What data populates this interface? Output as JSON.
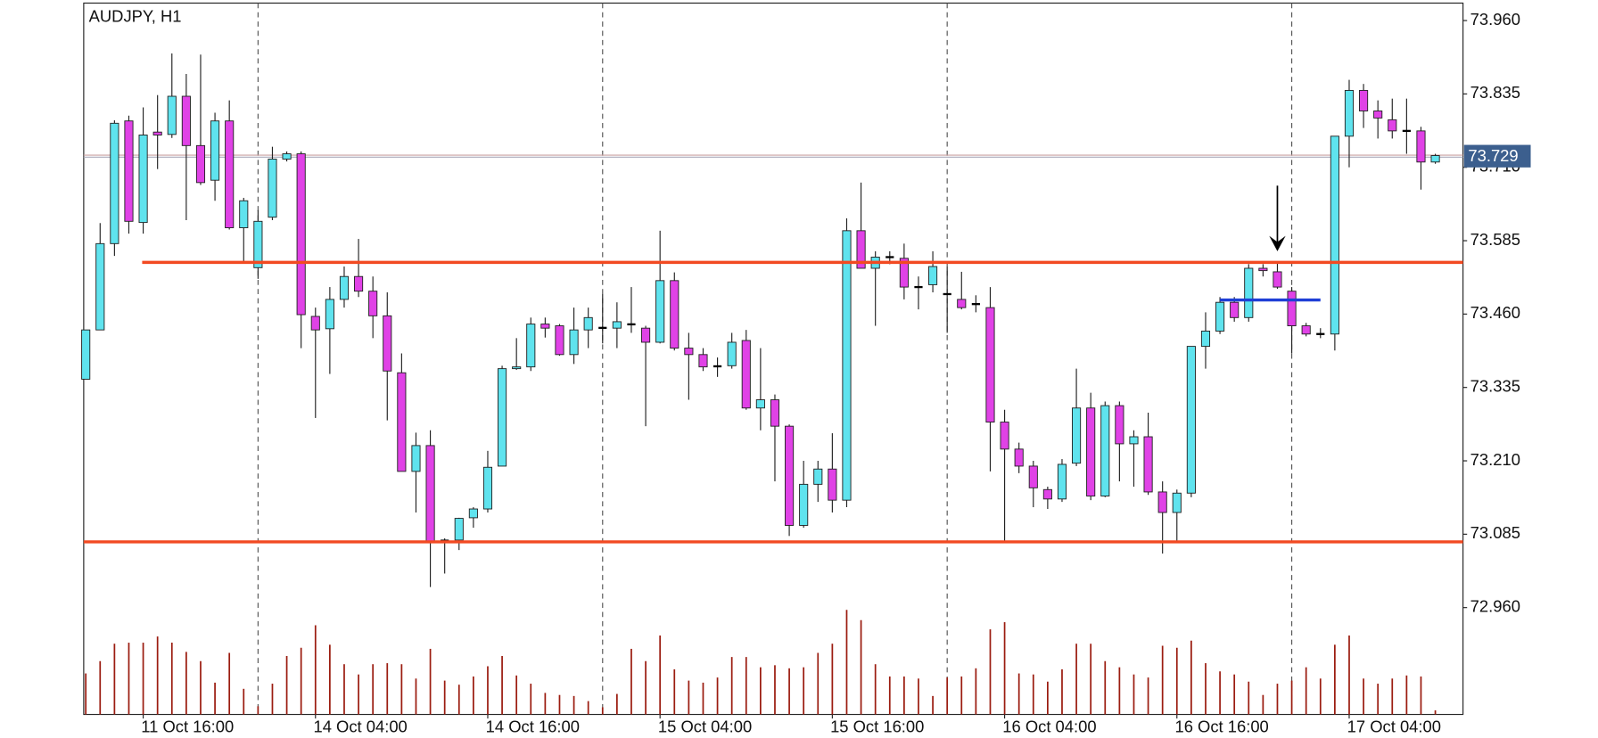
{
  "chart_data": {
    "type": "candlestick",
    "title": "AUDJPY, H1",
    "categories": [
      null,
      null,
      null,
      null,
      "11 Oct 16:00",
      null,
      null,
      null,
      null,
      null,
      null,
      null,
      null,
      null,
      null,
      null,
      "14 Oct 04:00",
      null,
      null,
      null,
      null,
      null,
      null,
      null,
      null,
      null,
      null,
      null,
      "14 Oct 16:00",
      null,
      null,
      null,
      null,
      null,
      null,
      null,
      null,
      null,
      null,
      null,
      "15 Oct 04:00",
      null,
      null,
      null,
      null,
      null,
      null,
      null,
      null,
      null,
      null,
      null,
      "15 Oct 16:00",
      null,
      null,
      null,
      null,
      null,
      null,
      null,
      null,
      null,
      null,
      null,
      "16 Oct 04:00",
      null,
      null,
      null,
      null,
      null,
      null,
      null,
      null,
      null,
      null,
      null,
      "16 Oct 16:00",
      null,
      null,
      null,
      null,
      null,
      null,
      null,
      null,
      null,
      null,
      null,
      "17 Oct 04:00",
      null,
      null,
      null,
      null,
      null,
      null
    ],
    "open": [
      73.349,
      73.433,
      73.58,
      73.789,
      73.616,
      73.77,
      73.766,
      73.831,
      73.747,
      73.688,
      73.789,
      73.607,
      73.539,
      73.625,
      73.724,
      73.733,
      73.456,
      73.435,
      73.485,
      73.524,
      73.499,
      73.457,
      73.36,
      73.192,
      73.236,
      73.073,
      73.075,
      73.113,
      73.128,
      73.201,
      73.367,
      73.37,
      73.443,
      73.44,
      73.391,
      73.433,
      73.437,
      73.436,
      73.443,
      73.436,
      73.412,
      73.517,
      73.402,
      73.391,
      73.372,
      73.372,
      73.415,
      73.3,
      73.314,
      73.269,
      73.1,
      73.17,
      73.196,
      73.143,
      73.602,
      73.538,
      73.557,
      73.555,
      73.506,
      73.51,
      73.494,
      73.485,
      73.477,
      73.471,
      73.276,
      73.23,
      73.201,
      73.161,
      73.145,
      73.206,
      73.3,
      73.15,
      73.304,
      73.239,
      73.251,
      73.157,
      73.122,
      73.155,
      73.405,
      73.431,
      73.48,
      73.454,
      73.538,
      73.532,
      73.499,
      73.44,
      73.426,
      73.426,
      73.763,
      73.841,
      73.806,
      73.791,
      73.772,
      73.772,
      73.719
    ],
    "high": [
      73.433,
      73.615,
      73.79,
      73.798,
      73.812,
      73.833,
      73.904,
      73.869,
      73.902,
      73.803,
      73.824,
      73.658,
      73.637,
      73.745,
      73.737,
      73.737,
      73.471,
      73.506,
      73.541,
      73.588,
      73.524,
      73.497,
      73.393,
      73.258,
      73.262,
      73.078,
      73.113,
      73.131,
      73.227,
      73.372,
      73.419,
      73.454,
      73.454,
      73.443,
      73.471,
      73.471,
      73.494,
      73.48,
      73.506,
      73.44,
      73.602,
      73.531,
      73.428,
      73.402,
      73.386,
      73.428,
      73.433,
      73.402,
      73.323,
      73.272,
      73.21,
      73.21,
      73.257,
      73.623,
      73.684,
      73.567,
      73.567,
      73.58,
      73.524,
      73.567,
      73.541,
      73.532,
      73.492,
      73.506,
      73.297,
      73.241,
      73.21,
      73.166,
      73.213,
      73.367,
      73.326,
      73.311,
      73.311,
      73.262,
      73.292,
      73.175,
      73.161,
      73.405,
      73.463,
      73.489,
      73.489,
      73.545,
      73.545,
      73.55,
      73.506,
      73.445,
      73.436,
      73.763,
      73.859,
      73.852,
      73.824,
      73.827,
      73.827,
      73.779,
      73.733
    ],
    "low": [
      73.349,
      73.433,
      73.559,
      73.597,
      73.597,
      73.707,
      73.76,
      73.62,
      73.68,
      73.653,
      73.604,
      73.55,
      73.52,
      73.62,
      73.72,
      73.402,
      73.283,
      73.358,
      73.471,
      73.489,
      73.419,
      73.279,
      73.192,
      73.122,
      72.995,
      73.018,
      73.058,
      73.096,
      73.122,
      73.201,
      73.365,
      73.363,
      73.42,
      73.389,
      73.375,
      73.402,
      73.41,
      73.402,
      73.428,
      73.269,
      73.41,
      73.398,
      73.314,
      73.363,
      73.353,
      73.367,
      73.297,
      73.262,
      73.175,
      73.082,
      73.096,
      73.14,
      73.122,
      73.131,
      73.538,
      73.44,
      73.545,
      73.485,
      73.468,
      73.497,
      73.428,
      73.468,
      73.463,
      73.192,
      73.073,
      73.189,
      73.131,
      73.128,
      73.14,
      73.201,
      73.143,
      73.148,
      73.175,
      73.166,
      73.152,
      73.052,
      73.07,
      73.148,
      73.367,
      73.426,
      73.447,
      73.447,
      73.524,
      73.503,
      73.393,
      73.422,
      73.419,
      73.398,
      73.71,
      73.777,
      73.759,
      73.759,
      73.733,
      73.672,
      73.716
    ],
    "close": [
      73.433,
      73.58,
      73.785,
      73.618,
      73.765,
      73.765,
      73.831,
      73.747,
      73.684,
      73.789,
      73.607,
      73.653,
      73.618,
      73.724,
      73.733,
      73.459,
      73.433,
      73.485,
      73.524,
      73.499,
      73.457,
      73.363,
      73.192,
      73.236,
      73.073,
      73.075,
      73.112,
      73.128,
      73.199,
      73.367,
      73.37,
      73.443,
      73.436,
      73.391,
      73.433,
      73.454,
      73.436,
      73.447,
      73.442,
      73.412,
      73.517,
      73.402,
      73.391,
      73.37,
      73.37,
      73.412,
      73.3,
      73.314,
      73.269,
      73.1,
      73.17,
      73.196,
      73.143,
      73.602,
      73.538,
      73.557,
      73.557,
      73.506,
      73.506,
      73.541,
      73.494,
      73.471,
      73.477,
      73.276,
      73.23,
      73.201,
      73.164,
      73.145,
      73.204,
      73.3,
      73.15,
      73.304,
      73.239,
      73.251,
      73.157,
      73.122,
      73.155,
      73.405,
      73.431,
      73.48,
      73.454,
      73.538,
      73.534,
      73.506,
      73.44,
      73.426,
      73.426,
      73.763,
      73.841,
      73.806,
      73.794,
      73.772,
      73.772,
      73.719,
      73.73
    ],
    "volume": [
      40,
      52,
      69,
      70,
      70,
      76,
      70,
      61,
      52,
      31,
      60,
      25,
      8,
      30,
      57,
      65,
      87,
      68,
      49,
      39,
      49,
      50,
      49,
      35,
      64,
      33,
      29,
      37,
      47,
      57,
      38,
      30,
      21,
      19,
      18,
      13,
      7,
      20,
      64,
      52,
      77,
      44,
      33,
      31,
      36,
      56,
      56,
      46,
      48,
      45,
      46,
      60,
      69,
      102,
      92,
      49,
      37,
      37,
      35,
      18,
      36,
      37,
      45,
      83,
      90,
      40,
      39,
      32,
      44,
      69,
      69,
      52,
      46,
      39,
      36,
      67,
      65,
      72,
      50,
      42,
      39,
      32,
      19,
      30,
      33,
      46,
      35,
      68,
      77,
      35,
      30,
      35,
      38,
      37,
      4
    ],
    "up_color": "#5fe3ee",
    "down_color": "#e042e6",
    "volume_color": "#9b1c10",
    "ylim": [
      72.778,
      73.995
    ],
    "yticks": [
      {
        "value": 73.96,
        "label": "73.960"
      },
      73.835,
      {
        "value": 73.71,
        "label": "73.710"
      },
      73.585,
      {
        "value": 73.46,
        "label": "73.460"
      },
      73.335,
      {
        "value": 73.21,
        "label": "73.210"
      },
      73.085,
      {
        "value": 72.96,
        "label": "72.960"
      }
    ],
    "current_price": 73.729,
    "horizontal_lines": [
      {
        "value": 73.548,
        "color": "#f24a22"
      },
      {
        "value": 73.072,
        "color": "#f24a22"
      }
    ],
    "segment": {
      "value": 73.484,
      "from_index": 79,
      "to_index": 86,
      "color": "#1f3fd6"
    },
    "arrow": {
      "index": 83,
      "value": 73.567
    }
  }
}
